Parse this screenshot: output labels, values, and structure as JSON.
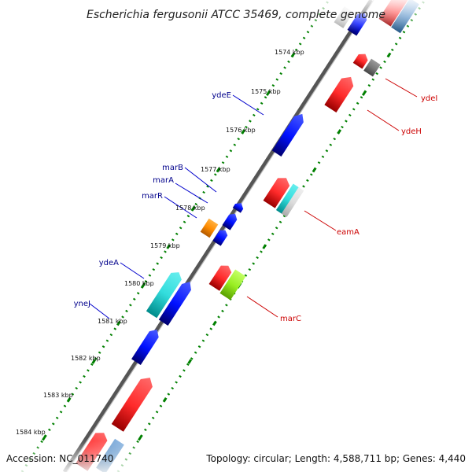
{
  "title": "Escherichia fergusonii ATCC 35469, complete genome",
  "footer": {
    "accession": "Accession: NC_011740",
    "topology": "Topology: circular; Length: 4,588,711 bp; Genes: 4,440"
  },
  "ticks": [
    "1574 kbp",
    "1575 kbp",
    "1576 kbp",
    "1577 kbp",
    "1578 kbp",
    "1579 kbp",
    "1580 kbp",
    "1581 kbp",
    "1582 kbp",
    "1583 kbp",
    "1584 kbp"
  ],
  "genes": {
    "left": [
      "ydeE",
      "marB",
      "marA",
      "marR",
      "ydeA",
      "yneJ"
    ],
    "right": [
      "ydeI",
      "ydeH",
      "eamA",
      "marC"
    ]
  },
  "colors": {
    "forward_cds": "#ff0000",
    "reverse_cds": "#0000ff",
    "left_label": "#00008b",
    "right_label": "#cc0000",
    "track": "#666666",
    "tick": "#008000"
  }
}
